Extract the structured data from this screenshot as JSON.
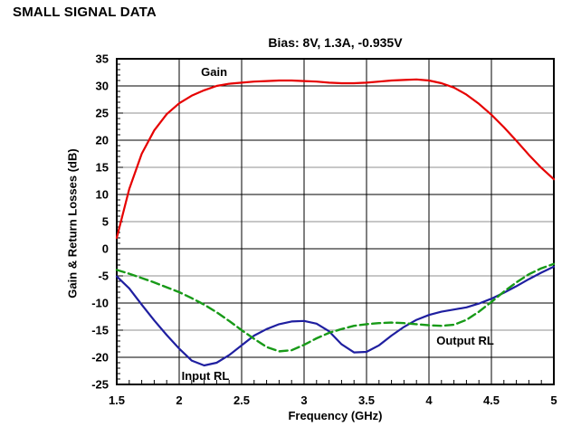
{
  "page": {
    "heading": "SMALL SIGNAL DATA"
  },
  "chart_data": {
    "type": "line",
    "title": "Bias: 8V, 1.3A, -0.935V",
    "xlabel": "Frequency (GHz)",
    "ylabel": "Gain & Return Losses (dB)",
    "xlim": [
      1.5,
      5
    ],
    "ylim": [
      -25,
      35
    ],
    "x_major_step": 0.5,
    "x_minor_step": 0.1,
    "y_major_step": 5,
    "y_minor_step": 1,
    "x_tick_labels": [
      "1.5",
      "2",
      "2.5",
      "3",
      "3.5",
      "4",
      "4.5",
      "5"
    ],
    "y_tick_labels": [
      "35",
      "30",
      "25",
      "20",
      "15",
      "10",
      "5",
      "0",
      "-5",
      "-10",
      "-15",
      "-20",
      "-25"
    ],
    "grid": {
      "major_color": "#000000",
      "minor_color": "#8f8f8f",
      "frame_color": "#000000"
    },
    "legend_position": "inline-labels",
    "x": [
      1.5,
      1.6,
      1.7,
      1.8,
      1.9,
      2.0,
      2.1,
      2.2,
      2.3,
      2.4,
      2.5,
      2.6,
      2.7,
      2.8,
      2.9,
      3.0,
      3.1,
      3.2,
      3.3,
      3.4,
      3.5,
      3.6,
      3.7,
      3.8,
      3.9,
      4.0,
      4.1,
      4.2,
      4.3,
      4.4,
      4.5,
      4.6,
      4.7,
      4.8,
      4.9,
      5.0
    ],
    "series": [
      {
        "id": "gain",
        "name": "Gain",
        "color": "#e60000",
        "style": "solid",
        "label_anchor": {
          "x": 2.28,
          "y": 32.6
        },
        "values": [
          2.0,
          11.0,
          17.5,
          21.8,
          24.8,
          26.8,
          28.2,
          29.2,
          30.0,
          30.4,
          30.6,
          30.8,
          30.9,
          31.0,
          31.0,
          30.9,
          30.8,
          30.6,
          30.5,
          30.5,
          30.6,
          30.8,
          31.0,
          31.1,
          31.2,
          31.0,
          30.5,
          29.7,
          28.4,
          26.7,
          24.7,
          22.4,
          19.9,
          17.3,
          14.9,
          12.8
        ]
      },
      {
        "id": "input-rl",
        "name": "Input RL",
        "color": "#1f1fa0",
        "style": "solid",
        "label_anchor": {
          "x": 2.21,
          "y": -23.4
        },
        "values": [
          -5.1,
          -7.3,
          -10.3,
          -13.2,
          -15.9,
          -18.4,
          -20.6,
          -21.5,
          -21.0,
          -19.6,
          -17.8,
          -16.0,
          -14.8,
          -13.9,
          -13.4,
          -13.3,
          -13.8,
          -15.2,
          -17.6,
          -19.1,
          -19.0,
          -17.8,
          -16.0,
          -14.4,
          -13.1,
          -12.2,
          -11.6,
          -11.2,
          -10.8,
          -10.1,
          -9.2,
          -8.1,
          -6.9,
          -5.6,
          -4.4,
          -3.3
        ]
      },
      {
        "id": "output-rl",
        "name": "Output RL",
        "color": "#189a18",
        "style": "dashed",
        "label_anchor": {
          "x": 4.29,
          "y": -16.9
        },
        "values": [
          -3.9,
          -4.6,
          -5.4,
          -6.2,
          -7.1,
          -8.0,
          -9.1,
          -10.3,
          -11.7,
          -13.3,
          -15.0,
          -16.6,
          -18.1,
          -18.9,
          -18.7,
          -17.7,
          -16.5,
          -15.5,
          -14.8,
          -14.2,
          -13.9,
          -13.7,
          -13.6,
          -13.7,
          -13.9,
          -14.1,
          -14.2,
          -14.0,
          -13.1,
          -11.6,
          -9.8,
          -7.9,
          -6.2,
          -4.7,
          -3.6,
          -2.8
        ]
      }
    ]
  }
}
